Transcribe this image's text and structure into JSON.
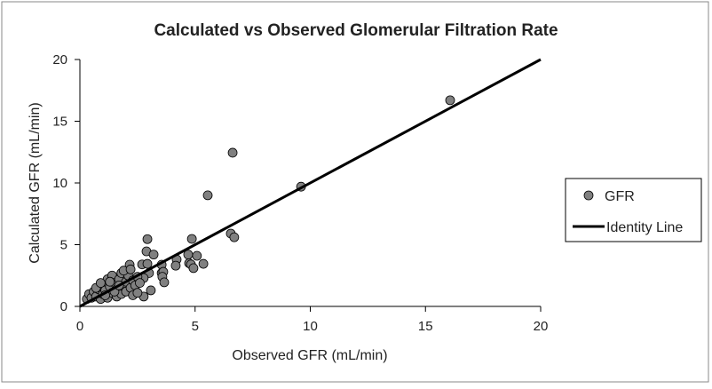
{
  "chart_data": {
    "type": "scatter",
    "title": "Calculated vs Observed Glomerular Filtration Rate",
    "xlabel": "Observed GFR (mL/min)",
    "ylabel": "Calculated GFR (mL/min)",
    "xlim": [
      0,
      20
    ],
    "ylim": [
      0,
      20
    ],
    "xticks": [
      "0",
      "5",
      "10",
      "15",
      "20"
    ],
    "yticks": [
      "0",
      "5",
      "10",
      "15",
      "20"
    ],
    "grid": false,
    "legend_position": "right",
    "series": [
      {
        "name": "GFR",
        "type": "scatter",
        "color": "#808080",
        "points": [
          [
            16.07,
            16.7
          ],
          [
            6.63,
            12.45
          ],
          [
            5.55,
            9.0
          ],
          [
            9.6,
            9.7
          ],
          [
            6.55,
            5.9
          ],
          [
            6.7,
            5.6
          ],
          [
            2.93,
            5.45
          ],
          [
            4.86,
            5.47
          ],
          [
            2.89,
            4.46
          ],
          [
            3.2,
            4.2
          ],
          [
            2.16,
            3.38
          ],
          [
            2.7,
            3.4
          ],
          [
            2.93,
            3.45
          ],
          [
            3.55,
            3.38
          ],
          [
            4.2,
            3.8
          ],
          [
            4.16,
            3.3
          ],
          [
            4.7,
            4.2
          ],
          [
            5.08,
            4.1
          ],
          [
            4.74,
            3.5
          ],
          [
            4.82,
            3.4
          ],
          [
            4.93,
            3.1
          ],
          [
            5.36,
            3.45
          ],
          [
            3.0,
            2.7
          ],
          [
            3.55,
            2.7
          ],
          [
            3.62,
            2.8
          ],
          [
            3.58,
            2.4
          ],
          [
            3.66,
            1.95
          ],
          [
            2.77,
            2.3
          ],
          [
            3.08,
            1.3
          ],
          [
            2.77,
            0.8
          ],
          [
            0.3,
            0.6
          ],
          [
            0.4,
            1.0
          ],
          [
            0.5,
            0.7
          ],
          [
            0.6,
            1.2
          ],
          [
            0.7,
            0.8
          ],
          [
            0.8,
            1.4
          ],
          [
            0.9,
            0.6
          ],
          [
            1.0,
            1.0
          ],
          [
            1.0,
            1.8
          ],
          [
            1.1,
            1.3
          ],
          [
            1.2,
            2.2
          ],
          [
            1.2,
            0.7
          ],
          [
            1.3,
            1.6
          ],
          [
            1.4,
            1.1
          ],
          [
            1.4,
            2.5
          ],
          [
            1.5,
            1.9
          ],
          [
            1.6,
            0.8
          ],
          [
            1.6,
            1.4
          ],
          [
            1.7,
            2.2
          ],
          [
            1.8,
            1.0
          ],
          [
            1.8,
            2.7
          ],
          [
            1.9,
            1.6
          ],
          [
            2.0,
            2.0
          ],
          [
            2.0,
            1.2
          ],
          [
            2.1,
            2.5
          ],
          [
            2.2,
            1.5
          ],
          [
            2.3,
            0.9
          ],
          [
            2.3,
            2.1
          ],
          [
            2.4,
            1.7
          ],
          [
            2.5,
            2.4
          ],
          [
            2.5,
            1.1
          ],
          [
            2.6,
            1.9
          ],
          [
            1.1,
            0.9
          ],
          [
            0.7,
            1.5
          ],
          [
            1.5,
            1.2
          ],
          [
            1.9,
            2.9
          ],
          [
            2.2,
            3.0
          ],
          [
            1.3,
            2.0
          ],
          [
            0.9,
            1.9
          ],
          [
            1.7,
            1.7
          ]
        ]
      },
      {
        "name": "Identity Line",
        "type": "line",
        "color": "#000000",
        "points": [
          [
            0,
            0
          ],
          [
            20,
            20
          ]
        ]
      }
    ]
  }
}
